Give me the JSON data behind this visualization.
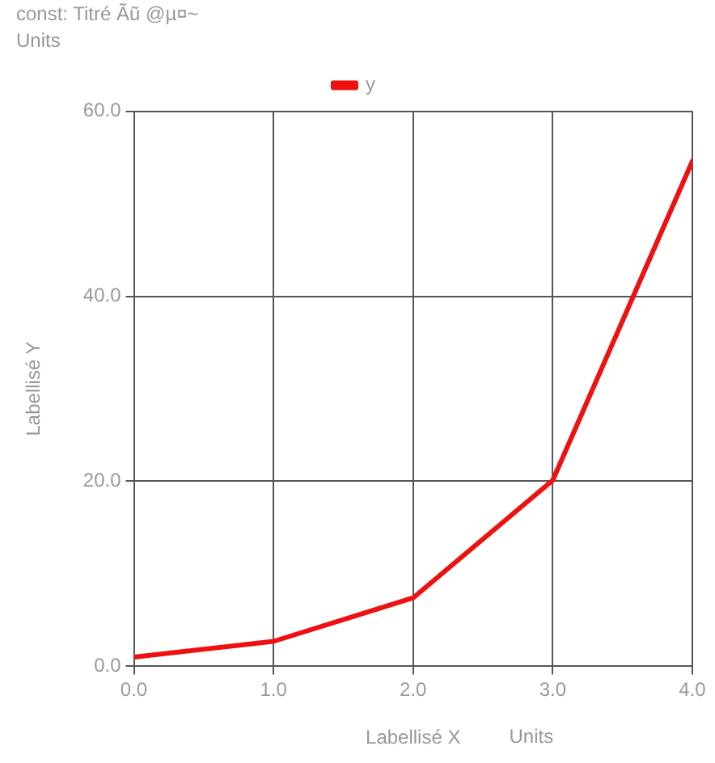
{
  "chart_data": {
    "type": "line",
    "title": "const: Titré Ãũ @µ¤~",
    "subtitle": "Units",
    "xlabel": "Labellisé X",
    "ylabel": "Labellisé Y",
    "annotations": [
      "Units"
    ],
    "x": [
      0,
      1,
      2,
      3,
      4
    ],
    "series": [
      {
        "name": "y",
        "color": "#ee1111",
        "values": [
          1,
          2.7,
          7.4,
          20.1,
          54.6
        ]
      }
    ],
    "xlim": [
      0,
      4
    ],
    "ylim": [
      0,
      60
    ],
    "xticks": [
      {
        "value": 0,
        "label": "0.0"
      },
      {
        "value": 1,
        "label": "1.0"
      },
      {
        "value": 2,
        "label": "2.0"
      },
      {
        "value": 3,
        "label": "3.0"
      },
      {
        "value": 4,
        "label": "4.0"
      }
    ],
    "yticks": [
      {
        "value": 0,
        "label": "0.0"
      },
      {
        "value": 20,
        "label": "20.0"
      },
      {
        "value": 40,
        "label": "40.0"
      },
      {
        "value": 60,
        "label": "60.0"
      }
    ],
    "grid": true,
    "legend": "top",
    "marker": "none",
    "line_style": "solid"
  }
}
